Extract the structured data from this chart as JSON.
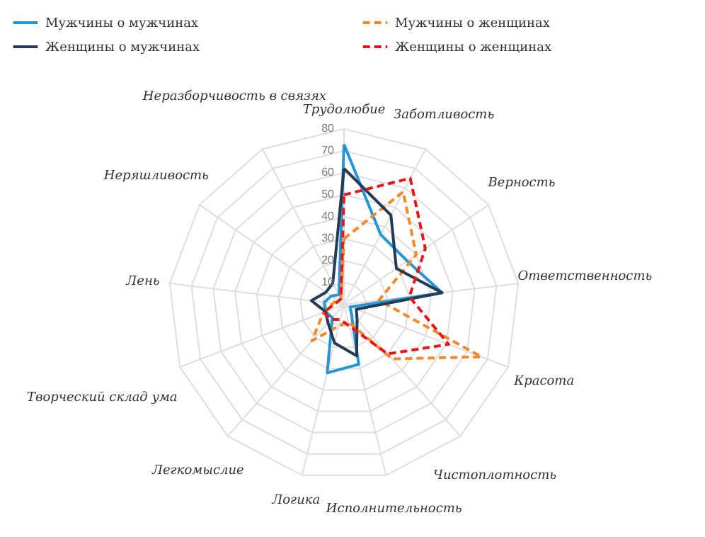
{
  "chart_data": {
    "type": "radar",
    "categories": [
      "Трудолюбие",
      "Заботливость",
      "Верность",
      "Ответственность",
      "Красота",
      "Чистоплотность",
      "Исполнительность",
      "Логика",
      "Легкомыслие",
      "Творческий склад ума",
      "Лень",
      "Неряшливость",
      "Неразборчивость в связях"
    ],
    "series": [
      {
        "name": "Мужчины о мужчинах",
        "color": "#2596d4",
        "line_style": "solid",
        "values": [
          73,
          36,
          35,
          45,
          3,
          5,
          28,
          32,
          8,
          9,
          9,
          7,
          5
        ]
      },
      {
        "name": "Мужчины о женщинах",
        "color": "#f5892a",
        "line_style": "dashed",
        "values": [
          30,
          58,
          40,
          16,
          67,
          33,
          8,
          10,
          22,
          10,
          5,
          4,
          3
        ]
      },
      {
        "name": "Женщины о мужчинах",
        "color": "#243a55",
        "line_style": "solid",
        "values": [
          62,
          46,
          29,
          45,
          6,
          9,
          24,
          18,
          11,
          9,
          15,
          10,
          11
        ]
      },
      {
        "name": "Женщины о женщинах",
        "color": "#e8161a",
        "line_style": "dashed",
        "values": [
          50,
          65,
          45,
          30,
          51,
          30,
          10,
          7,
          9,
          10,
          4,
          3,
          3
        ]
      }
    ],
    "ylim": [
      0,
      80
    ],
    "yticks": [
      10,
      20,
      30,
      40,
      50,
      60,
      70,
      80
    ],
    "grid": true,
    "legend": "top"
  }
}
